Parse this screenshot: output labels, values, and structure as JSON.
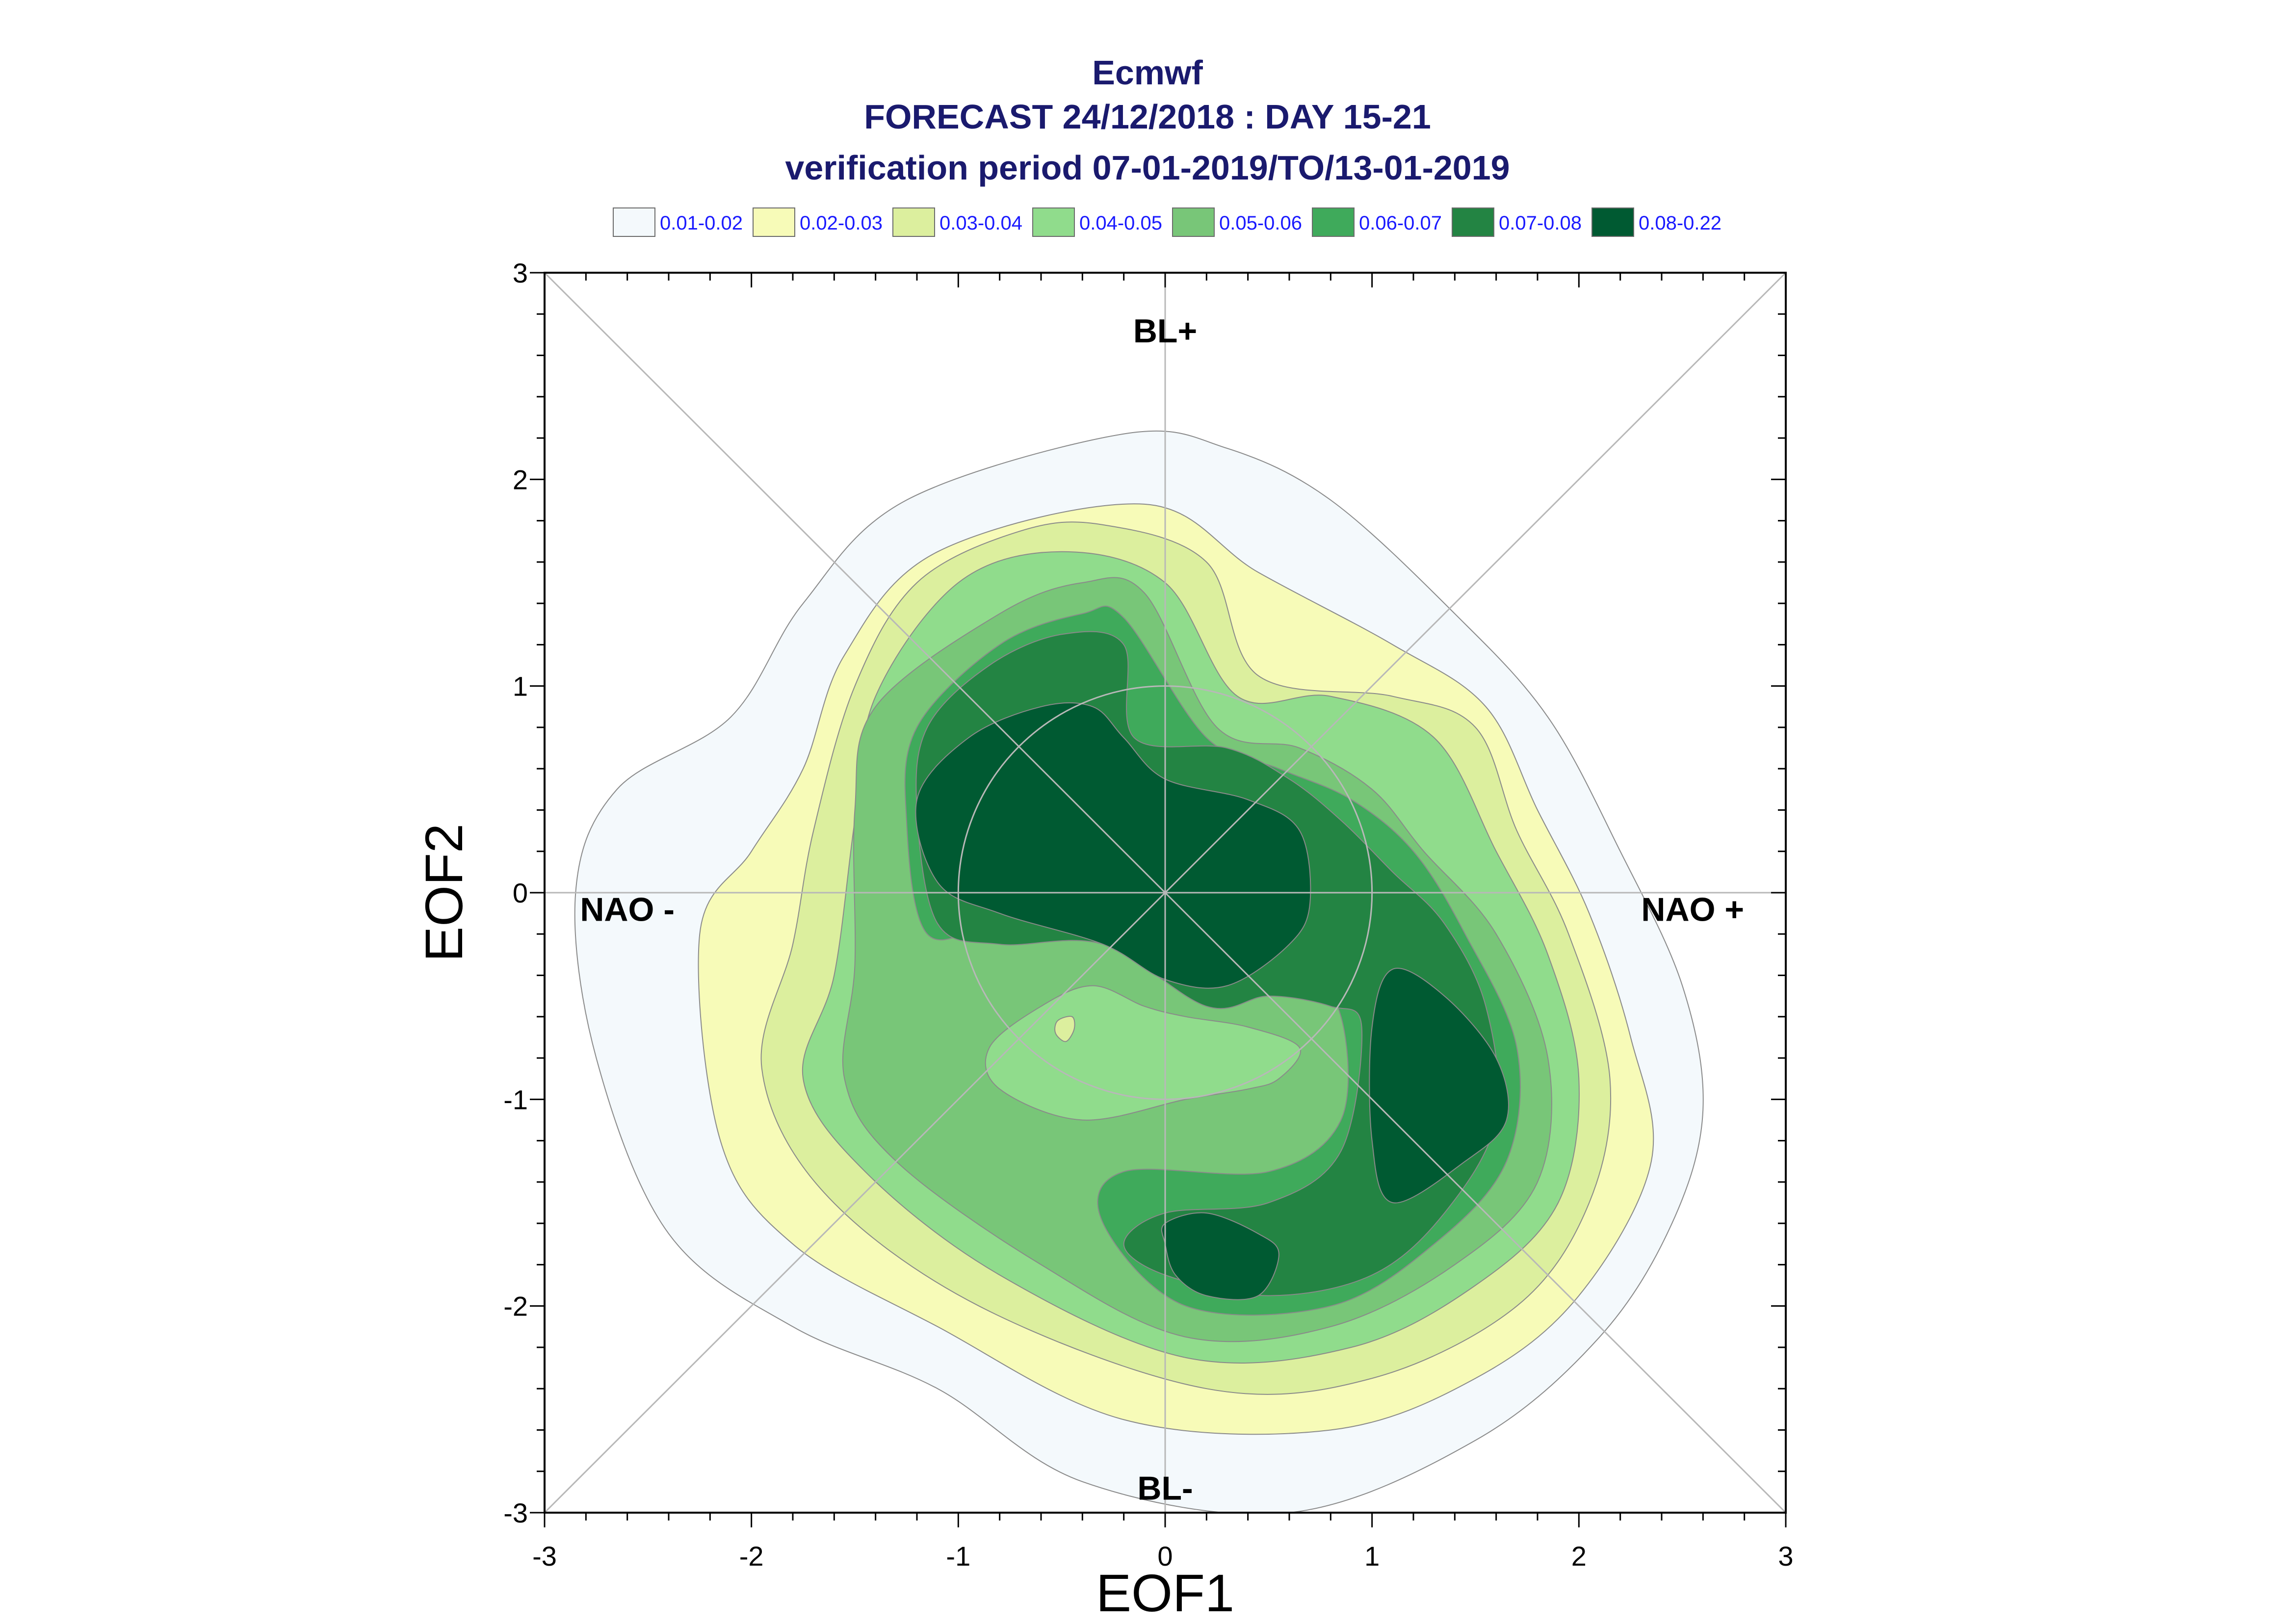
{
  "chart_data": {
    "type": "contour",
    "title": [
      "Ecmwf",
      "FORECAST 24/12/2018 : DAY 15-21",
      "verification period 07-01-2019/TO/13-01-2019"
    ],
    "xlabel": "EOF1",
    "ylabel": "EOF2",
    "xlim": [
      -3,
      3
    ],
    "ylim": [
      -3,
      3
    ],
    "xticks": [
      "-3",
      "-2",
      "-1",
      "0",
      "1",
      "2",
      "3"
    ],
    "yticks": [
      "-3",
      "-2",
      "-1",
      "0",
      "1",
      "2",
      "3"
    ],
    "legend": [
      {
        "label": "0.01-0.02",
        "color": "#f4f9fc"
      },
      {
        "label": "0.02-0.03",
        "color": "#f7fbb8"
      },
      {
        "label": "0.03-0.04",
        "color": "#dcef9e"
      },
      {
        "label": "0.04-0.05",
        "color": "#90dc8c"
      },
      {
        "label": "0.05-0.06",
        "color": "#78c678"
      },
      {
        "label": "0.06-0.07",
        "color": "#3faa5b"
      },
      {
        "label": "0.07-0.08",
        "color": "#238443"
      },
      {
        "label": "0.08-0.22",
        "color": "#005a32"
      }
    ],
    "regimes": [
      {
        "label": "BL+",
        "x": 0,
        "y": 2.72
      },
      {
        "label": "BL-",
        "x": 0,
        "y": -2.88
      },
      {
        "label": "NAO -",
        "x": -2.6,
        "y": -0.08
      },
      {
        "label": "NAO +",
        "x": 2.55,
        "y": -0.08
      }
    ],
    "reference_circle_radius": 1.0,
    "contours": [
      {
        "level": 0,
        "points": [
          [
            -0.2,
            2.22
          ],
          [
            0.3,
            2.15
          ],
          [
            0.8,
            1.9
          ],
          [
            1.4,
            1.35
          ],
          [
            1.85,
            0.85
          ],
          [
            2.2,
            0.2
          ],
          [
            2.5,
            -0.45
          ],
          [
            2.6,
            -1.05
          ],
          [
            2.45,
            -1.6
          ],
          [
            2.1,
            -2.15
          ],
          [
            1.5,
            -2.65
          ],
          [
            0.6,
            -3.0
          ],
          [
            -0.4,
            -2.85
          ],
          [
            -1.1,
            -2.4
          ],
          [
            -1.8,
            -2.1
          ],
          [
            -2.4,
            -1.65
          ],
          [
            -2.75,
            -0.8
          ],
          [
            -2.85,
            0.0
          ],
          [
            -2.65,
            0.5
          ],
          [
            -2.1,
            0.85
          ],
          [
            -1.75,
            1.4
          ],
          [
            -1.25,
            1.9
          ]
        ]
      },
      {
        "level": 1,
        "points": [
          [
            -0.1,
            1.88
          ],
          [
            0.45,
            1.55
          ],
          [
            1.1,
            1.2
          ],
          [
            1.55,
            0.9
          ],
          [
            1.8,
            0.4
          ],
          [
            2.05,
            -0.1
          ],
          [
            2.25,
            -0.7
          ],
          [
            2.35,
            -1.3
          ],
          [
            2.0,
            -1.95
          ],
          [
            1.5,
            -2.35
          ],
          [
            0.8,
            -2.6
          ],
          [
            -0.2,
            -2.55
          ],
          [
            -1.1,
            -2.1
          ],
          [
            -1.8,
            -1.7
          ],
          [
            -2.15,
            -1.2
          ],
          [
            -2.25,
            -0.2
          ],
          [
            -2.0,
            0.2
          ],
          [
            -1.75,
            0.6
          ],
          [
            -1.55,
            1.15
          ],
          [
            -1.1,
            1.65
          ]
        ]
      },
      {
        "level": 2,
        "points": [
          [
            -0.3,
            1.78
          ],
          [
            0.2,
            1.6
          ],
          [
            0.45,
            1.05
          ],
          [
            1.1,
            0.95
          ],
          [
            1.5,
            0.8
          ],
          [
            1.7,
            0.3
          ],
          [
            1.95,
            -0.2
          ],
          [
            2.15,
            -0.9
          ],
          [
            2.05,
            -1.5
          ],
          [
            1.7,
            -2.0
          ],
          [
            1.0,
            -2.35
          ],
          [
            0.2,
            -2.4
          ],
          [
            -0.9,
            -2.0
          ],
          [
            -1.65,
            -1.45
          ],
          [
            -1.95,
            -0.85
          ],
          [
            -1.8,
            -0.25
          ],
          [
            -1.7,
            0.3
          ],
          [
            -1.5,
            1.0
          ],
          [
            -1.2,
            1.5
          ],
          [
            -0.7,
            1.75
          ]
        ]
      },
      {
        "level": 3,
        "points": [
          [
            -0.5,
            1.65
          ],
          [
            0.0,
            1.5
          ],
          [
            0.35,
            0.95
          ],
          [
            0.8,
            0.95
          ],
          [
            1.3,
            0.75
          ],
          [
            1.6,
            0.2
          ],
          [
            1.85,
            -0.3
          ],
          [
            2.0,
            -0.9
          ],
          [
            1.9,
            -1.5
          ],
          [
            1.5,
            -1.9
          ],
          [
            0.9,
            -2.2
          ],
          [
            0.1,
            -2.25
          ],
          [
            -0.8,
            -1.85
          ],
          [
            -1.45,
            -1.35
          ],
          [
            -1.75,
            -0.9
          ],
          [
            -1.6,
            -0.4
          ],
          [
            -1.5,
            0.35
          ],
          [
            -1.4,
            0.95
          ],
          [
            -1.0,
            1.5
          ]
        ]
      },
      {
        "level": 4,
        "points": [
          [
            -0.4,
            1.5
          ],
          [
            -0.1,
            1.45
          ],
          [
            0.25,
            0.8
          ],
          [
            0.65,
            0.7
          ],
          [
            1.0,
            0.5
          ],
          [
            1.25,
            0.2
          ],
          [
            1.6,
            -0.2
          ],
          [
            1.85,
            -0.8
          ],
          [
            1.8,
            -1.4
          ],
          [
            1.4,
            -1.8
          ],
          [
            0.8,
            -2.1
          ],
          [
            0.1,
            -2.15
          ],
          [
            -0.6,
            -1.8
          ],
          [
            -1.3,
            -1.3
          ],
          [
            -1.55,
            -0.9
          ],
          [
            -1.5,
            -0.35
          ],
          [
            -1.5,
            0.4
          ],
          [
            -1.4,
            0.9
          ],
          [
            -0.8,
            1.35
          ]
        ]
      },
      {
        "level": 5,
        "points": [
          [
            -0.4,
            1.35
          ],
          [
            -0.2,
            1.33
          ],
          [
            0.2,
            0.75
          ],
          [
            0.55,
            0.6
          ],
          [
            0.9,
            0.45
          ],
          [
            1.2,
            0.2
          ],
          [
            1.45,
            -0.2
          ],
          [
            1.7,
            -0.75
          ],
          [
            1.65,
            -1.3
          ],
          [
            1.3,
            -1.7
          ],
          [
            0.8,
            -2.0
          ],
          [
            0.1,
            -2.0
          ],
          [
            -0.3,
            -1.6
          ],
          [
            -0.2,
            -1.35
          ],
          [
            0.5,
            -1.35
          ],
          [
            0.85,
            -1.1
          ],
          [
            0.85,
            -0.6
          ],
          [
            0.65,
            -0.4
          ],
          [
            0.1,
            -0.45
          ],
          [
            -0.3,
            -0.15
          ],
          [
            -0.8,
            -0.15
          ],
          [
            -1.15,
            -0.2
          ],
          [
            -1.25,
            0.35
          ],
          [
            -1.2,
            0.8
          ],
          [
            -0.8,
            1.2
          ]
        ]
      },
      {
        "level": 6,
        "points": [
          [
            -0.5,
            1.25
          ],
          [
            -0.2,
            1.2
          ],
          [
            -0.15,
            0.75
          ],
          [
            0.3,
            0.7
          ],
          [
            0.6,
            0.55
          ],
          [
            0.85,
            0.35
          ],
          [
            1.1,
            0.1
          ],
          [
            1.35,
            -0.15
          ],
          [
            1.55,
            -0.55
          ],
          [
            1.6,
            -1.1
          ],
          [
            1.35,
            -1.55
          ],
          [
            1.0,
            -1.85
          ],
          [
            0.5,
            -1.95
          ],
          [
            0.0,
            -1.85
          ],
          [
            -0.2,
            -1.7
          ],
          [
            0.0,
            -1.55
          ],
          [
            0.5,
            -1.5
          ],
          [
            0.85,
            -1.25
          ],
          [
            0.95,
            -0.65
          ],
          [
            0.8,
            -0.55
          ],
          [
            0.5,
            -0.5
          ],
          [
            0.2,
            -0.55
          ],
          [
            -0.3,
            -0.25
          ],
          [
            -0.8,
            -0.25
          ],
          [
            -1.1,
            -0.15
          ],
          [
            -1.2,
            0.4
          ],
          [
            -1.15,
            0.8
          ],
          [
            -0.85,
            1.1
          ]
        ]
      },
      {
        "level": 7,
        "points": [
          [
            -0.6,
            0.9
          ],
          [
            -0.35,
            0.9
          ],
          [
            -0.2,
            0.75
          ],
          [
            0.0,
            0.55
          ],
          [
            0.4,
            0.45
          ],
          [
            0.65,
            0.3
          ],
          [
            0.7,
            -0.05
          ],
          [
            0.6,
            -0.25
          ],
          [
            0.3,
            -0.45
          ],
          [
            0.0,
            -0.42
          ],
          [
            -0.3,
            -0.25
          ],
          [
            -0.8,
            -0.1
          ],
          [
            -1.1,
            0.05
          ],
          [
            -1.2,
            0.45
          ],
          [
            -0.95,
            0.75
          ]
        ]
      },
      {
        "level": 7,
        "points": [
          [
            1.1,
            -0.37
          ],
          [
            1.35,
            -0.5
          ],
          [
            1.6,
            -0.8
          ],
          [
            1.65,
            -1.1
          ],
          [
            1.45,
            -1.3
          ],
          [
            1.1,
            -1.5
          ],
          [
            1.0,
            -1.2
          ],
          [
            1.0,
            -0.65
          ]
        ]
      },
      {
        "level": 7,
        "points": [
          [
            0.0,
            -1.6
          ],
          [
            0.2,
            -1.55
          ],
          [
            0.45,
            -1.65
          ],
          [
            0.55,
            -1.75
          ],
          [
            0.45,
            -1.95
          ],
          [
            0.2,
            -1.95
          ],
          [
            0.05,
            -1.85
          ],
          [
            0.0,
            -1.7
          ]
        ]
      },
      {
        "level": 3,
        "points": [
          [
            -0.85,
            -0.75
          ],
          [
            -0.6,
            -0.55
          ],
          [
            -0.35,
            -0.45
          ],
          [
            -0.1,
            -0.55
          ],
          [
            0.1,
            -0.6
          ],
          [
            0.4,
            -0.65
          ],
          [
            0.65,
            -0.75
          ],
          [
            0.55,
            -0.9
          ],
          [
            0.4,
            -0.95
          ],
          [
            0.1,
            -1.0
          ],
          [
            -0.4,
            -1.1
          ],
          [
            -0.8,
            -0.95
          ]
        ]
      },
      {
        "level": 2,
        "points": [
          [
            -0.52,
            -0.62
          ],
          [
            -0.45,
            -0.6
          ],
          [
            -0.44,
            -0.66
          ],
          [
            -0.48,
            -0.72
          ],
          [
            -0.53,
            -0.68
          ]
        ]
      }
    ]
  }
}
